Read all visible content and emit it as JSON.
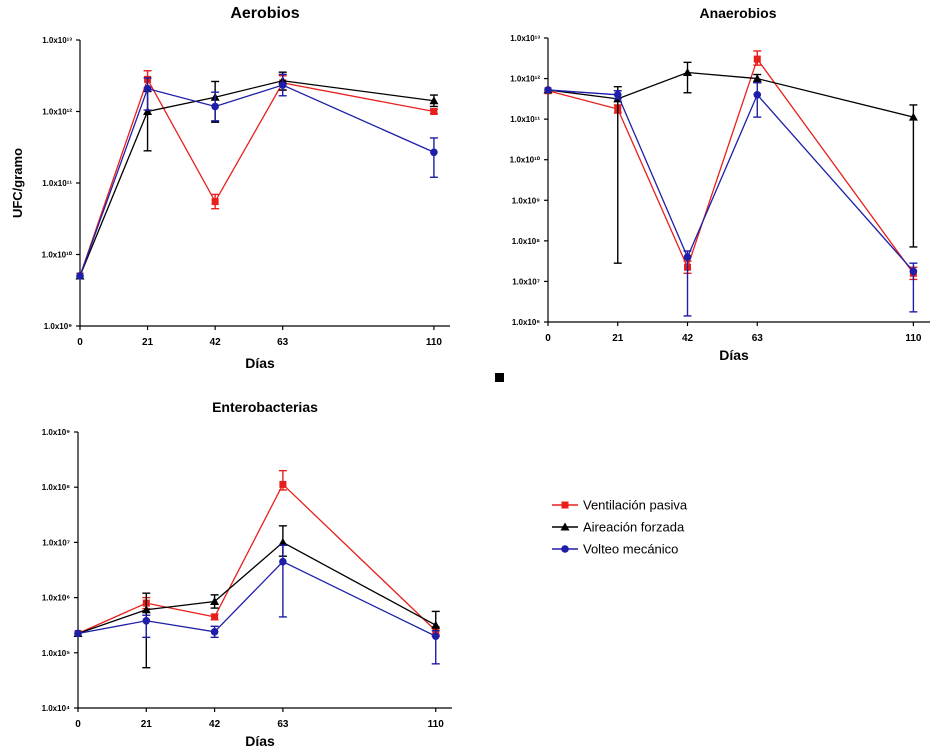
{
  "chart_data": [
    {
      "type": "line",
      "title": "Aerobios",
      "xlabel": "Días",
      "ylabel": "UFC/gramo",
      "yscale": "log",
      "ylim_exp": [
        9,
        13
      ],
      "x": [
        0,
        21,
        42,
        63,
        110
      ],
      "x_ticks": [
        "0",
        "21",
        "42",
        "63",
        "110"
      ],
      "y_ticks": [
        "1.0x10⁹",
        "1.0x10¹⁰",
        "1.0x10¹¹",
        "1.0x10¹²",
        "1.0x10¹³"
      ],
      "series": [
        {
          "name": "Ventilación pasiva",
          "values_log10": [
            9.7,
            12.45,
            10.74,
            12.4,
            12.0
          ],
          "err_lo": [
            0,
            0.12,
            0.1,
            0.1,
            0.03
          ],
          "err_hi": [
            0,
            0.12,
            0.1,
            0.1,
            0.03
          ]
        },
        {
          "name": "Aireación forzada",
          "values_log10": [
            9.7,
            12.0,
            12.2,
            12.43,
            12.15
          ],
          "err_lo": [
            0,
            0.55,
            0.35,
            0.13,
            0.08
          ],
          "err_hi": [
            0,
            0.28,
            0.22,
            0.12,
            0.08
          ]
        },
        {
          "name": "Volteo mecánico",
          "values_log10": [
            9.7,
            12.32,
            12.07,
            12.37,
            11.43
          ],
          "err_lo": [
            0,
            0.3,
            0.2,
            0.15,
            0.35
          ],
          "err_hi": [
            0,
            0.15,
            0.2,
            0.15,
            0.2
          ]
        }
      ]
    },
    {
      "type": "line",
      "title": "Anaerobios",
      "xlabel": "Días",
      "ylabel": "",
      "yscale": "log",
      "ylim_exp": [
        6,
        13
      ],
      "x": [
        0,
        21,
        42,
        63,
        110
      ],
      "x_ticks": [
        "0",
        "21",
        "42",
        "63",
        "110"
      ],
      "y_ticks": [
        "1.0x10⁶",
        "1.0x10⁷",
        "1.0x10⁸",
        "1.0x10⁹",
        "1.0x10¹⁰",
        "1.0x10¹¹",
        "1.0x10¹²",
        "1.0x10¹³"
      ],
      "series": [
        {
          "name": "Ventilación pasiva",
          "values_log10": [
            11.7,
            11.25,
            7.35,
            12.48,
            7.2
          ],
          "err_lo": [
            0,
            0.1,
            0.15,
            0.15,
            0.15
          ],
          "err_hi": [
            0,
            0.1,
            0.15,
            0.2,
            0.15
          ]
        },
        {
          "name": "Aireación forzada",
          "values_log10": [
            11.72,
            11.5,
            12.15,
            12.0,
            11.05
          ],
          "err_lo": [
            0,
            4.05,
            0.5,
            0.1,
            3.2
          ],
          "err_hi": [
            0,
            0.3,
            0.25,
            0.1,
            0.3
          ]
        },
        {
          "name": "Volteo mecánico",
          "values_log10": [
            11.72,
            11.6,
            7.6,
            11.6,
            7.25
          ],
          "err_lo": [
            0,
            0.1,
            1.45,
            0.55,
            1.0
          ],
          "err_hi": [
            0,
            0.1,
            0.15,
            0.3,
            0.2
          ]
        }
      ]
    },
    {
      "type": "line",
      "title": "Enterobacterias",
      "xlabel": "Días",
      "ylabel": "",
      "yscale": "log",
      "ylim_exp": [
        4,
        9
      ],
      "x": [
        0,
        21,
        42,
        63,
        110
      ],
      "x_ticks": [
        "0",
        "21",
        "42",
        "63",
        "110"
      ],
      "y_ticks": [
        "1.0x10⁴",
        "1.0x10⁵",
        "1.0x10⁶",
        "1.0x10⁷",
        "1.0x10⁸",
        "1.0x10⁹"
      ],
      "series": [
        {
          "name": "Ventilación pasiva",
          "values_log10": [
            5.35,
            5.9,
            5.65,
            8.05,
            5.4
          ],
          "err_lo": [
            0,
            0.1,
            0.05,
            0.1,
            0.07
          ],
          "err_hi": [
            0,
            0.1,
            0.05,
            0.25,
            0.07
          ]
        },
        {
          "name": "Aireación forzada",
          "values_log10": [
            5.35,
            5.78,
            5.93,
            7.0,
            5.5
          ],
          "err_lo": [
            0,
            1.05,
            0.12,
            0.25,
            0.2
          ],
          "err_hi": [
            0,
            0.3,
            0.12,
            0.3,
            0.25
          ]
        },
        {
          "name": "Volteo mecánico",
          "values_log10": [
            5.35,
            5.58,
            5.38,
            6.65,
            5.3
          ],
          "err_lo": [
            0,
            0.3,
            0.1,
            1.0,
            0.5
          ],
          "err_hi": [
            0,
            0.1,
            0.1,
            0.3,
            0.1
          ]
        }
      ]
    }
  ],
  "legend": {
    "items": [
      {
        "label": "Ventilación pasiva",
        "color": "#e8201c",
        "marker": "square"
      },
      {
        "label": "Aireación forzada",
        "color": "#000000",
        "marker": "triangle"
      },
      {
        "label": "Volteo mecánico",
        "color": "#1e1ea8",
        "marker": "circle"
      }
    ]
  },
  "colors": {
    "ventilacion": "#e8201c",
    "aireacion": "#000000",
    "volteo": "#1e1ea8"
  }
}
